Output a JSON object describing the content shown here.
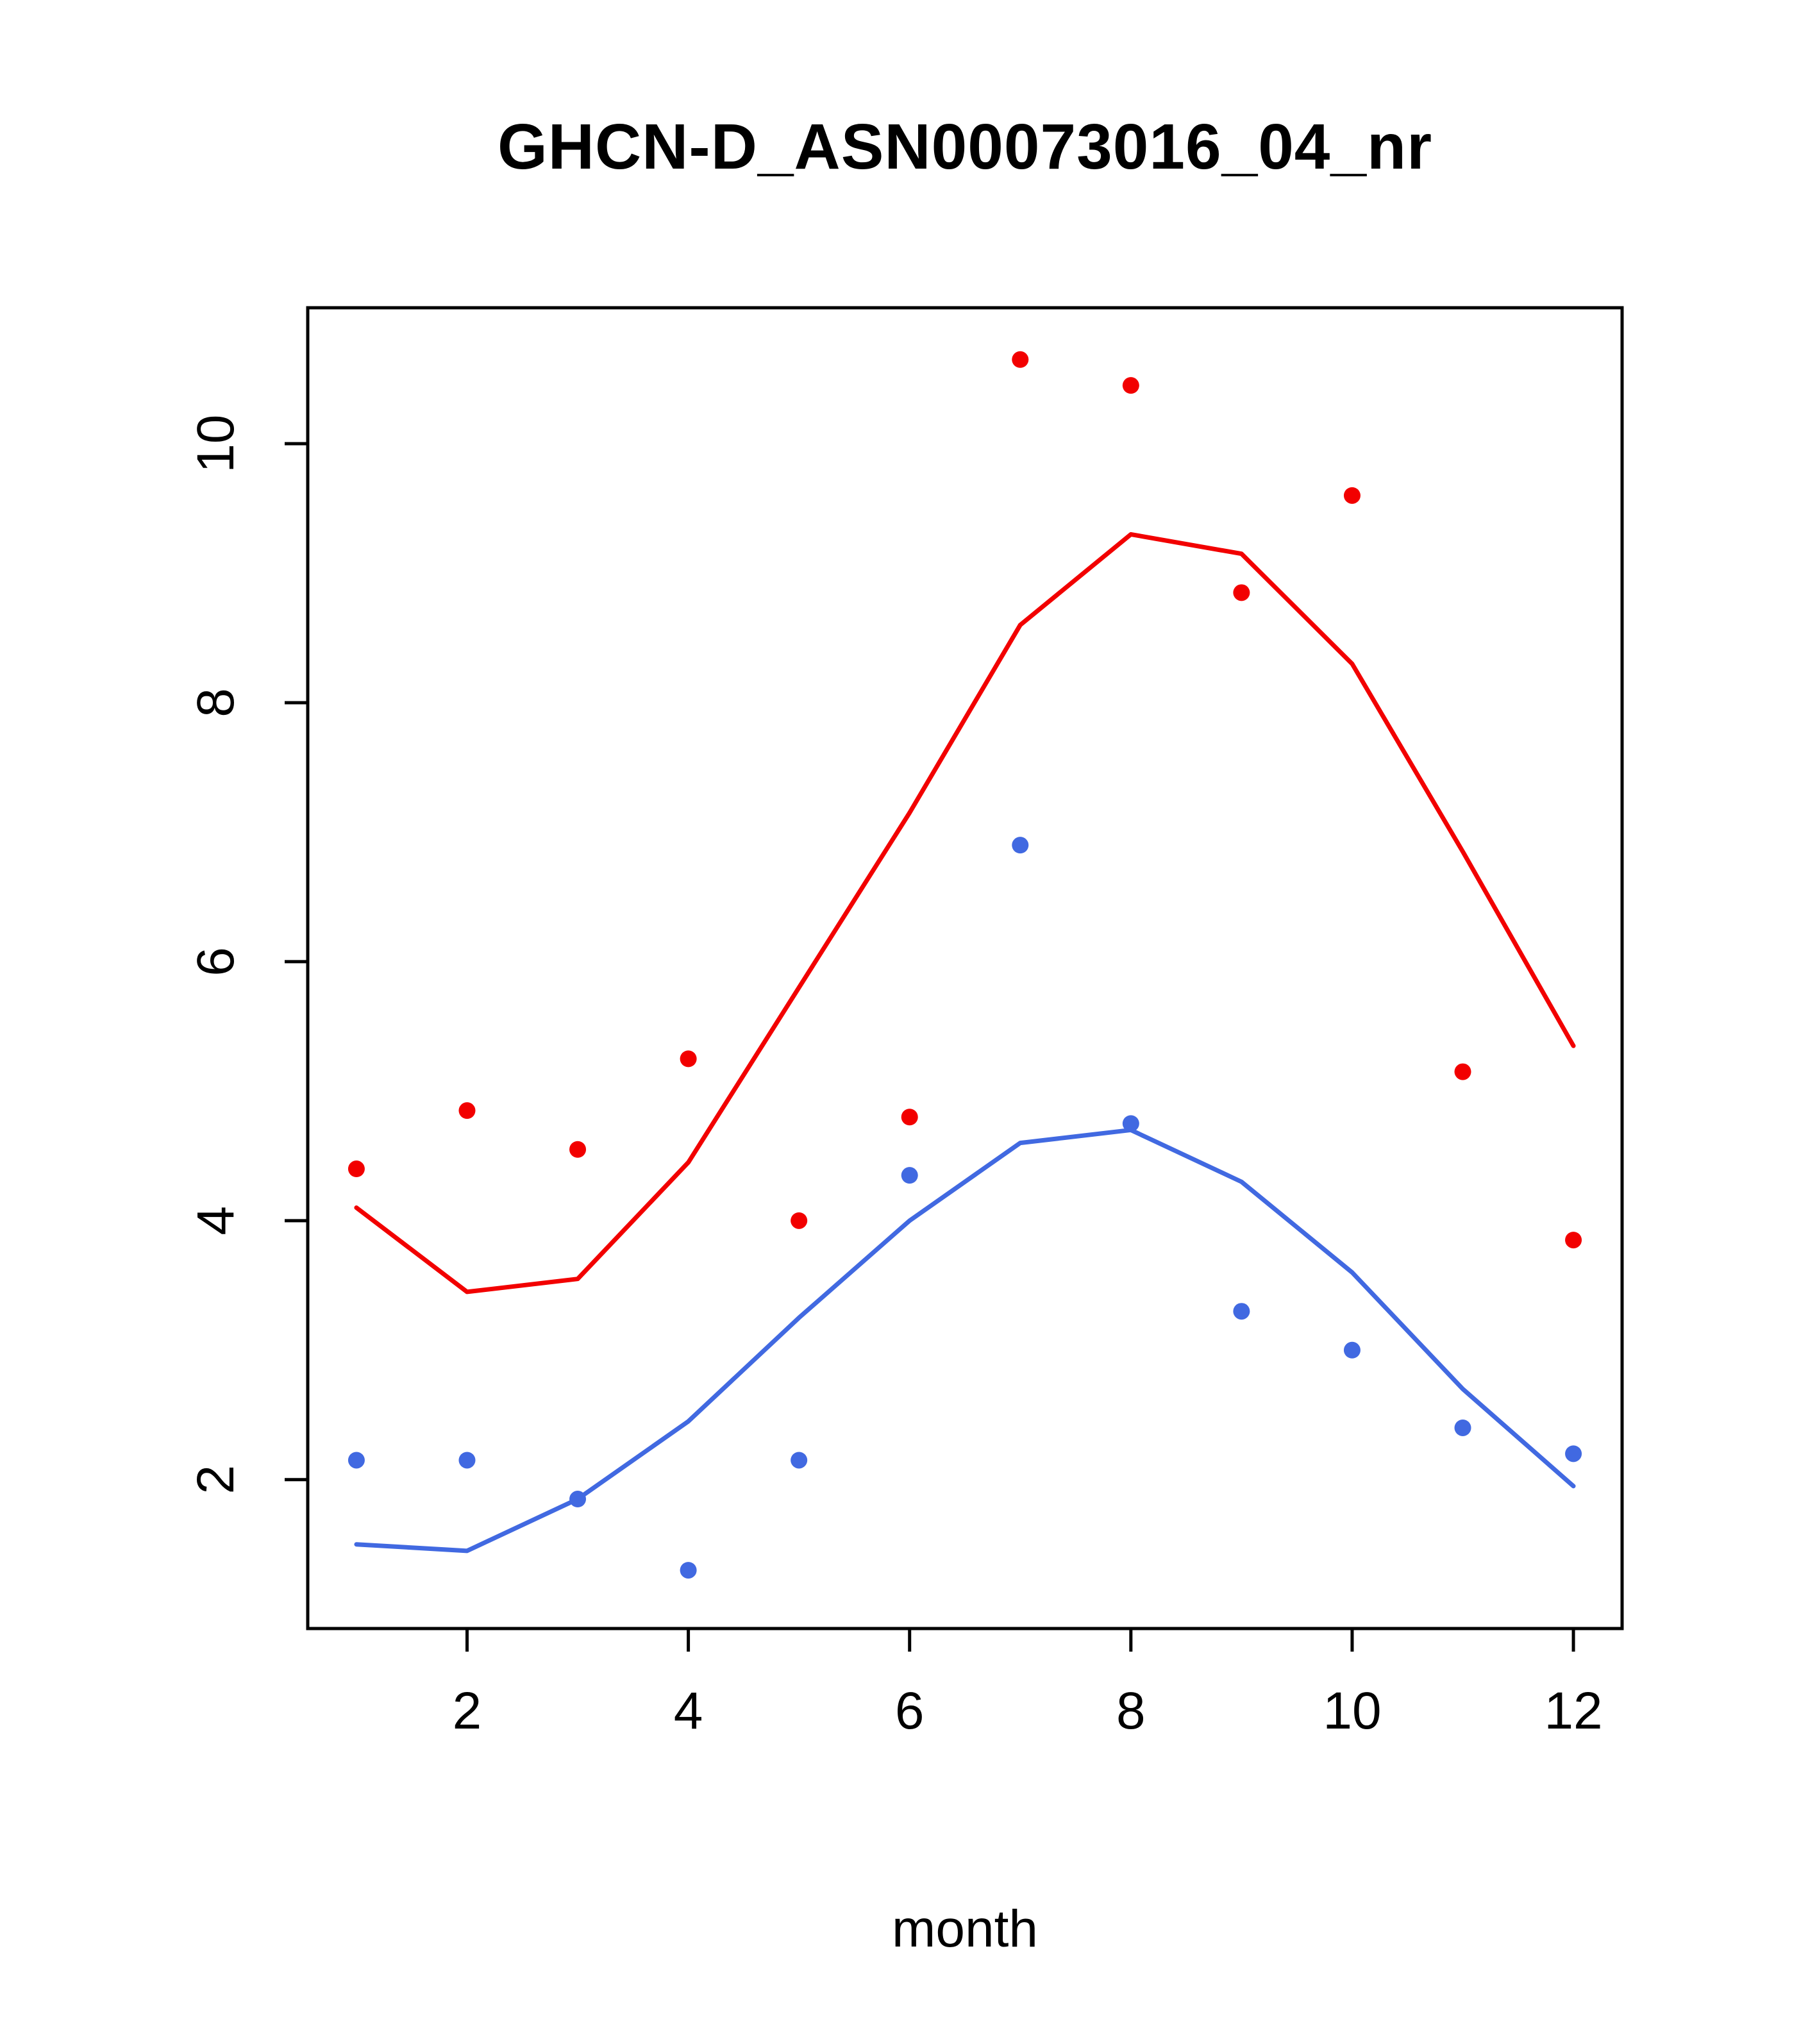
{
  "chart_data": {
    "type": "line+scatter",
    "title": "GHCN-D_ASN00073016_04_nr",
    "xlabel": "month",
    "ylabel": "",
    "x": [
      1,
      2,
      3,
      4,
      5,
      6,
      7,
      8,
      9,
      10,
      11,
      12
    ],
    "xlim": [
      0.56,
      12.44
    ],
    "ylim": [
      0.85,
      11.05
    ],
    "x_ticks": [
      2,
      4,
      6,
      8,
      10,
      12
    ],
    "y_ticks": [
      2,
      4,
      6,
      8,
      10
    ],
    "grid": false,
    "legend": "none",
    "colors": {
      "red": "#f20000",
      "blue": "#4169e1",
      "axis": "#000000"
    },
    "series": [
      {
        "name": "red-line",
        "type": "line",
        "color": "#f20000",
        "values": [
          4.1,
          3.45,
          3.55,
          4.45,
          5.8,
          7.15,
          8.6,
          9.3,
          9.15,
          8.3,
          6.85,
          5.35
        ]
      },
      {
        "name": "blue-line",
        "type": "line",
        "color": "#4169e1",
        "values": [
          1.5,
          1.45,
          1.85,
          2.45,
          3.25,
          4.0,
          4.6,
          4.7,
          4.3,
          3.6,
          2.7,
          1.95
        ]
      },
      {
        "name": "red-points",
        "type": "scatter",
        "color": "#f20000",
        "values": [
          4.4,
          4.85,
          4.55,
          5.25,
          4.0,
          4.8,
          10.65,
          10.45,
          8.85,
          9.6,
          5.15,
          3.85
        ]
      },
      {
        "name": "blue-points",
        "type": "scatter",
        "color": "#4169e1",
        "values": [
          2.15,
          2.15,
          1.85,
          1.3,
          2.15,
          4.35,
          6.9,
          4.75,
          3.3,
          3.0,
          2.4,
          2.2
        ]
      }
    ]
  }
}
